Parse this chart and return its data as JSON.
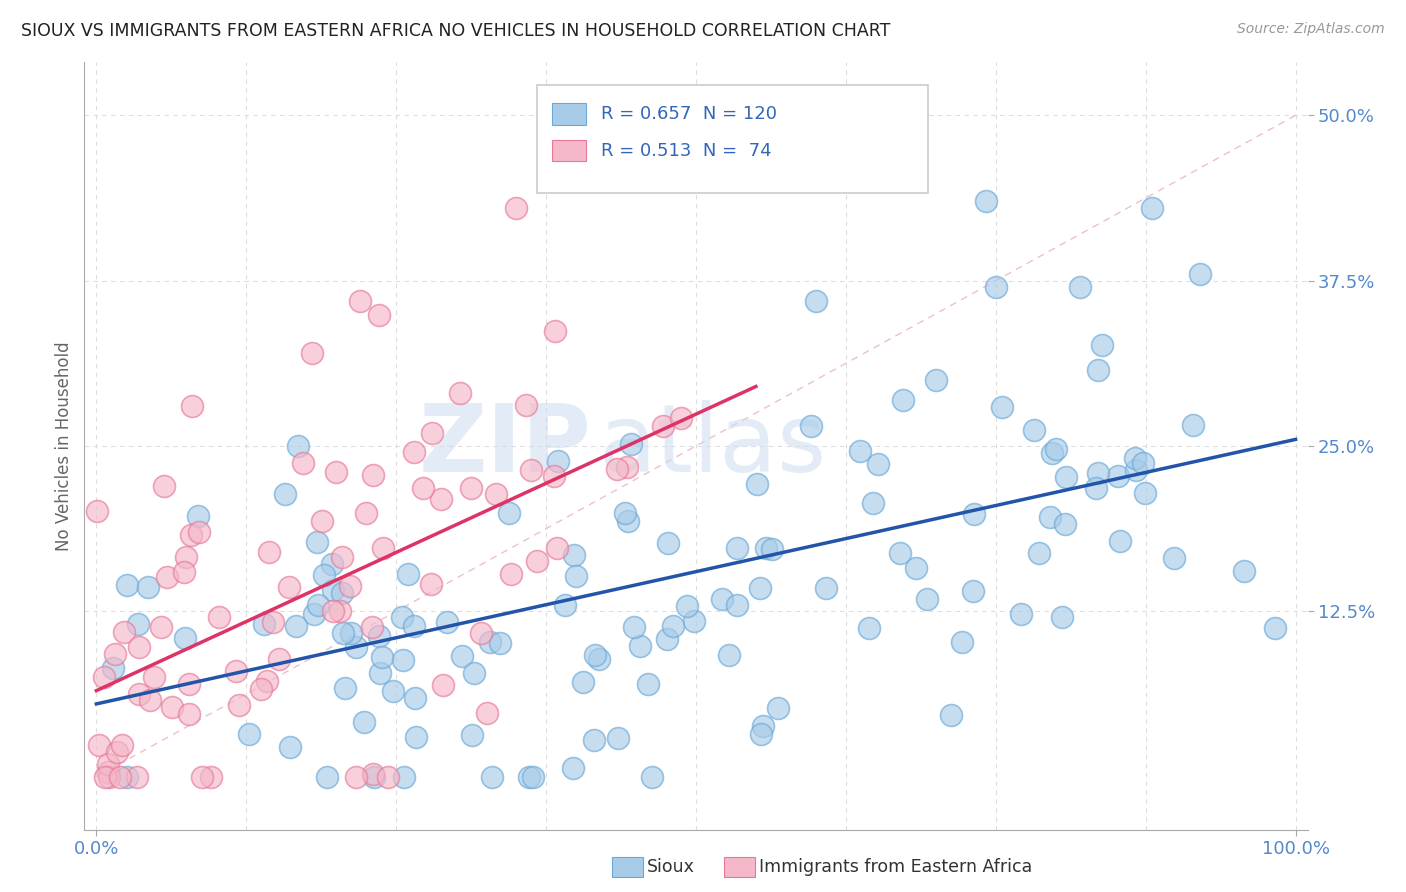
{
  "title": "SIOUX VS IMMIGRANTS FROM EASTERN AFRICA NO VEHICLES IN HOUSEHOLD CORRELATION CHART",
  "source": "Source: ZipAtlas.com",
  "ylabel": "No Vehicles in Household",
  "legend1_r": "0.657",
  "legend1_n": "120",
  "legend2_r": "0.513",
  "legend2_n": " 74",
  "series1_color": "#a8cce8",
  "series2_color": "#f4b8c8",
  "series1_edge": "#6aa8d8",
  "series2_edge": "#e87898",
  "trendline1_color": "#2255aa",
  "trendline2_color": "#dd3366",
  "diag_color": "#cccccc",
  "watermark_zip_color": "#c8d8f0",
  "watermark_atlas_color": "#c8d8f0",
  "background_color": "#ffffff",
  "grid_color": "#dddddd",
  "title_color": "#222222",
  "axis_color": "#aaaaaa",
  "tick_color": "#5588cc",
  "ytick_labels": [
    "12.5%",
    "25.0%",
    "37.5%",
    "50.0%"
  ],
  "ytick_vals": [
    0.125,
    0.25,
    0.375,
    0.5
  ],
  "xlim": [
    -0.01,
    1.01
  ],
  "ylim": [
    -0.04,
    0.54
  ]
}
